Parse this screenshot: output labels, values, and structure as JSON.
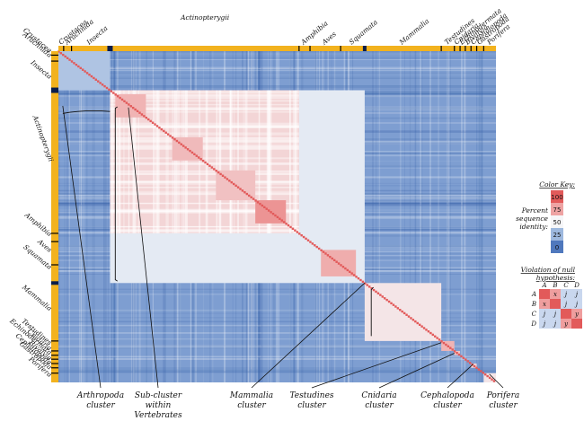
{
  "chart_data": {
    "type": "heatmap",
    "taxa": [
      {
        "name": "Crustacea",
        "start": 0.0,
        "end": 0.012
      },
      {
        "name": "Arachnida",
        "start": 0.012,
        "end": 0.03
      },
      {
        "name": "Insecta",
        "start": 0.03,
        "end": 0.118
      },
      {
        "name": "Actinopterygii",
        "start": 0.118,
        "end": 0.55
      },
      {
        "name": "Amphibia",
        "start": 0.55,
        "end": 0.575
      },
      {
        "name": "Aves",
        "start": 0.575,
        "end": 0.645
      },
      {
        "name": "Squamata",
        "start": 0.645,
        "end": 0.7
      },
      {
        "name": "Mammalia",
        "start": 0.7,
        "end": 0.875
      },
      {
        "name": "Testudines",
        "start": 0.875,
        "end": 0.905
      },
      {
        "name": "Cnidaria",
        "start": 0.905,
        "end": 0.918
      },
      {
        "name": "Echinodermata",
        "start": 0.918,
        "end": 0.93
      },
      {
        "name": "Bivalvia",
        "start": 0.93,
        "end": 0.943
      },
      {
        "name": "Cephalopoda",
        "start": 0.943,
        "end": 0.956
      },
      {
        "name": "Gastropoda",
        "start": 0.956,
        "end": 0.972
      },
      {
        "name": "Porifera",
        "start": 0.972,
        "end": 1.0
      }
    ],
    "blocks": [
      {
        "taxa": "Arthropoda",
        "start": 0.0,
        "end": 0.118,
        "identity": 30
      },
      {
        "taxa": "Vertebrates",
        "start": 0.118,
        "end": 0.7,
        "identity": 45
      },
      {
        "taxa": "Actinopterygii",
        "start": 0.118,
        "end": 0.55,
        "identity": 60
      },
      {
        "taxa": "Mammalia",
        "start": 0.7,
        "end": 0.875,
        "identity": 55
      },
      {
        "taxa": "Testudines",
        "start": 0.875,
        "end": 0.905,
        "identity": 70
      },
      {
        "taxa": "Cnidaria",
        "start": 0.905,
        "end": 0.918,
        "identity": 65
      },
      {
        "taxa": "Cephalopoda",
        "start": 0.943,
        "end": 0.956,
        "identity": 60
      },
      {
        "taxa": "Porifera",
        "start": 0.972,
        "end": 1.0,
        "identity": 55
      }
    ],
    "background_identity": 15,
    "diagonal_identity": 100,
    "color_scale": [
      {
        "value": 100,
        "color": "#e25a5a"
      },
      {
        "value": 75,
        "color": "#eea3a3"
      },
      {
        "value": 50,
        "color": "#f6f6f8"
      },
      {
        "value": 25,
        "color": "#9db8de"
      },
      {
        "value": 0,
        "color": "#4f78bd"
      }
    ]
  },
  "callouts": [
    {
      "line1": "Arthropoda",
      "line2": "cluster"
    },
    {
      "line1": "Sub-cluster",
      "line2": "within",
      "line3": "Vertebrates"
    },
    {
      "line1": "Mammalia",
      "line2": "cluster"
    },
    {
      "line1": "Testudines",
      "line2": "cluster"
    },
    {
      "line1": "Cnidaria",
      "line2": "cluster"
    },
    {
      "line1": "Cephalopoda",
      "line2": "cluster"
    },
    {
      "line1": "Porifera",
      "line2": "cluster"
    }
  ],
  "color_key": {
    "title": "Color Key:",
    "label_lines": [
      "Percent",
      "sequence",
      "identity:"
    ],
    "ticks": [
      "100",
      "75",
      "50",
      "25",
      "0"
    ]
  },
  "violation": {
    "title_lines": [
      "Violation of null",
      "hypothesis:"
    ],
    "headers": [
      "A",
      "B",
      "C",
      "D"
    ],
    "rows": [
      {
        "label": "A",
        "cells": [
          "",
          "x",
          "j",
          "j"
        ]
      },
      {
        "label": "B",
        "cells": [
          "x",
          "",
          "j",
          "j"
        ]
      },
      {
        "label": "C",
        "cells": [
          "j",
          "j",
          "",
          "y"
        ]
      },
      {
        "label": "D",
        "cells": [
          "j",
          "j",
          "y",
          ""
        ]
      }
    ]
  },
  "colors": {
    "sidebar": "#f2b21e",
    "sidebar_border": "#000000",
    "high": "#e25a5a",
    "low": "#4f78bd"
  }
}
